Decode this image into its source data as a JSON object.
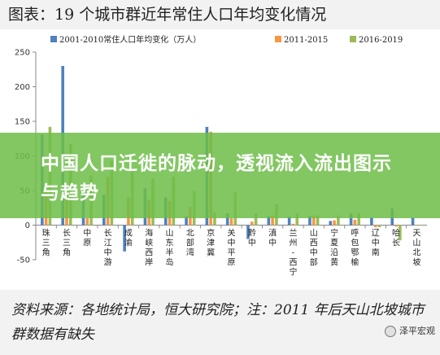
{
  "title": "图表：19 个城市群近年常住人口年均变化情况",
  "banner": {
    "line": "中国人口迁徙的脉动，透视流入流出图示与趋势"
  },
  "source": {
    "text": "资料来源：各地统计局，恒大研究院；注：2011 年后天山北坡城市群数据有缺失"
  },
  "watermark": {
    "text": "泽平宏观",
    "icon": "wechat-icon"
  },
  "colors": {
    "s1": "#4f81bd",
    "s2": "#f79646",
    "s3": "#9bbb59"
  },
  "chart_data": {
    "type": "bar",
    "categories": [
      "珠三角",
      "长三角",
      "中原",
      "长江中游",
      "成渝",
      "海峡西岸",
      "山东半岛",
      "北部湾",
      "京津冀",
      "关中平原",
      "黔中",
      "滇中",
      "兰州-西宁",
      "山西中部",
      "宁夏沿黄",
      "呼包鄂榆",
      "辽中南",
      "哈长",
      "天山北坡"
    ],
    "series": [
      {
        "name": "2001-2010常住人口年均变化（万人）",
        "values": [
          131,
          230,
          47,
          44,
          -38,
          53,
          40,
          13,
          142,
          17,
          -20,
          13,
          12,
          13,
          6,
          17,
          11,
          24,
          11
        ]
      },
      {
        "name": "2011-2015",
        "values": [
          51,
          36,
          10,
          70,
          40,
          37,
          35,
          27,
          135,
          10,
          5,
          14,
          2,
          13,
          7,
          8,
          -3,
          -2,
          0
        ]
      },
      {
        "name": "2016-2019",
        "values": [
          142,
          117,
          72,
          93,
          78,
          67,
          70,
          49,
          18,
          48,
          17,
          30,
          17,
          14,
          14,
          17,
          -3,
          -22,
          0
        ]
      }
    ],
    "ylim": [
      -50,
      250
    ],
    "yticks": [
      -50,
      0,
      50,
      100,
      150,
      200,
      250
    ],
    "grid": false,
    "legend": "top"
  }
}
